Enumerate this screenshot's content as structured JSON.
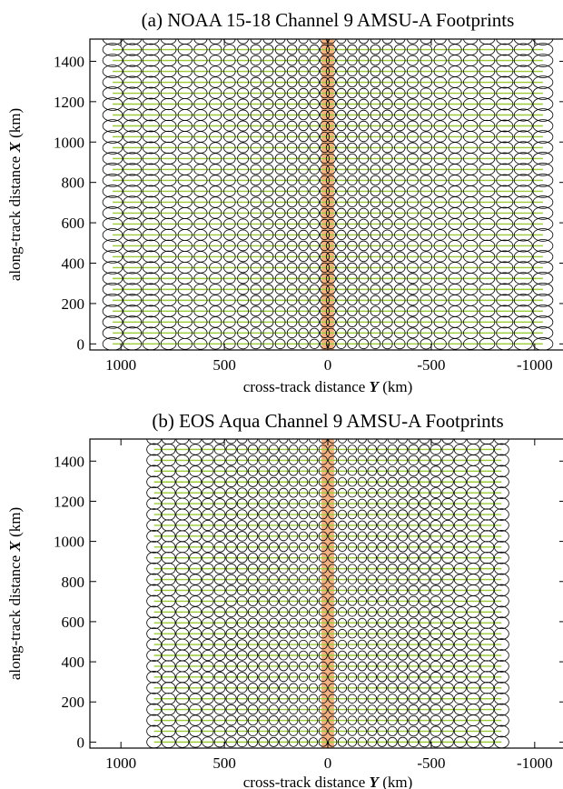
{
  "chart_data": [
    {
      "type": "scatter",
      "title": "(a) NOAA 15-18 Channel 9 AMSU-A Footprints",
      "xlabel_prefix": "cross-track distance ",
      "xlabel_symbol": "Y",
      "xlabel_suffix": " (km)",
      "ylabel_prefix": "along-track distance ",
      "ylabel_symbol": "X",
      "ylabel_suffix": " (km)",
      "xlim": [
        1150,
        -1150
      ],
      "ylim": [
        -30,
        1510
      ],
      "x_reversed": true,
      "xticks": [
        1000,
        500,
        0,
        -500,
        -1000
      ],
      "xtick_labels": [
        "1000",
        "500",
        "0",
        "-500",
        "-1000"
      ],
      "yticks": [
        0,
        200,
        400,
        600,
        800,
        1000,
        1200,
        1400
      ],
      "ytick_labels": [
        "0",
        "200",
        "400",
        "600",
        "800",
        "1000",
        "1200",
        "1400"
      ],
      "footprint_positions_y": [
        1040,
        945,
        855,
        770,
        690,
        615,
        543,
        475,
        410,
        348,
        288,
        230,
        173,
        118,
        65,
        15,
        -15,
        -65,
        -118,
        -173,
        -230,
        -288,
        -348,
        -410,
        -475,
        -543,
        -615,
        -690,
        -770,
        -855,
        -945,
        -1040
      ],
      "footprint_widths_y": [
        96,
        88,
        80,
        74,
        68,
        63,
        59,
        56,
        53,
        51,
        49,
        48,
        47,
        46,
        46,
        45,
        45,
        46,
        46,
        47,
        48,
        49,
        51,
        53,
        56,
        59,
        63,
        68,
        74,
        80,
        88,
        96
      ],
      "footprint_heights_x": [
        62,
        60,
        58,
        56,
        54,
        53,
        52,
        51,
        50,
        49,
        49,
        48,
        48,
        47,
        47,
        47,
        47,
        47,
        47,
        48,
        48,
        49,
        49,
        50,
        51,
        52,
        53,
        54,
        56,
        58,
        60,
        62
      ],
      "scan_spacing_x": 54,
      "scan_count": 29,
      "highlight_band_y": [
        30,
        -30
      ],
      "colors": {
        "footprint": "#000000",
        "scan_line": "#9ccc3a",
        "nadir_band": "#f4b183"
      }
    },
    {
      "type": "scatter",
      "title": "(b) EOS Aqua Channel 9 AMSU-A Footprints",
      "xlabel_prefix": "cross-track distance ",
      "xlabel_symbol": "Y",
      "xlabel_suffix": " (km)",
      "ylabel_prefix": "along-track distance ",
      "ylabel_symbol": "X",
      "ylabel_suffix": " (km)",
      "xlim": [
        1150,
        -1150
      ],
      "ylim": [
        -30,
        1510
      ],
      "x_reversed": true,
      "xticks": [
        1000,
        500,
        0,
        -500,
        -1000
      ],
      "xtick_labels": [
        "1000",
        "500",
        "0",
        "-500",
        "-1000"
      ],
      "yticks": [
        0,
        200,
        400,
        600,
        800,
        1000,
        1200,
        1400
      ],
      "ytick_labels": [
        "0",
        "200",
        "400",
        "600",
        "800",
        "1000",
        "1200",
        "1400"
      ],
      "footprint_positions_y": [
        840,
        770,
        703,
        640,
        580,
        522,
        467,
        414,
        362,
        312,
        262,
        214,
        166,
        118,
        70,
        23,
        -23,
        -70,
        -118,
        -166,
        -214,
        -262,
        -312,
        -362,
        -414,
        -467,
        -522,
        -580,
        -640,
        -703,
        -770,
        -840
      ],
      "footprint_widths_y": [
        70,
        66,
        62,
        58,
        55,
        52,
        50,
        48,
        46,
        45,
        44,
        43,
        42,
        42,
        41,
        41,
        41,
        41,
        42,
        42,
        43,
        44,
        45,
        46,
        48,
        50,
        52,
        55,
        58,
        62,
        66,
        70
      ],
      "footprint_heights_x": [
        58,
        56,
        54,
        52,
        51,
        50,
        49,
        48,
        47,
        46,
        46,
        45,
        45,
        44,
        44,
        44,
        44,
        44,
        44,
        45,
        45,
        46,
        46,
        47,
        48,
        49,
        50,
        51,
        52,
        54,
        56,
        58
      ],
      "scan_spacing_x": 54,
      "scan_count": 29,
      "highlight_band_y": [
        30,
        -30
      ],
      "colors": {
        "footprint": "#000000",
        "scan_line": "#9ccc3a",
        "nadir_band": "#f4b183"
      }
    }
  ]
}
